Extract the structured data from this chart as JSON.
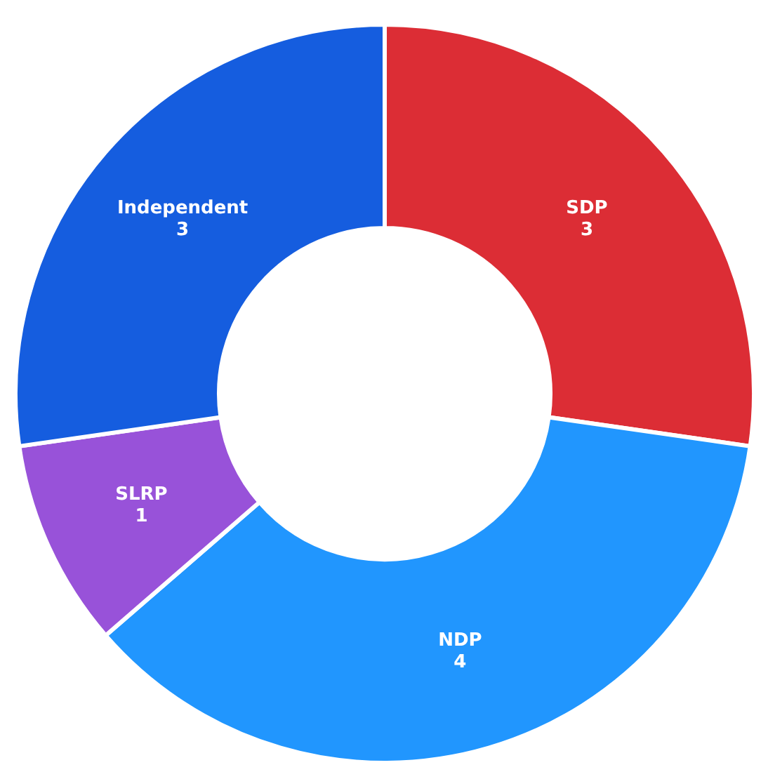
{
  "chart_data": {
    "type": "donut",
    "categories": [
      "SDP",
      "NDP",
      "SLRP",
      "Independent"
    ],
    "values": [
      3,
      4,
      1,
      3
    ],
    "colors": [
      "#dc2d35",
      "#2196fe",
      "#9852d9",
      "#155ddf"
    ],
    "data_labels": true
  }
}
